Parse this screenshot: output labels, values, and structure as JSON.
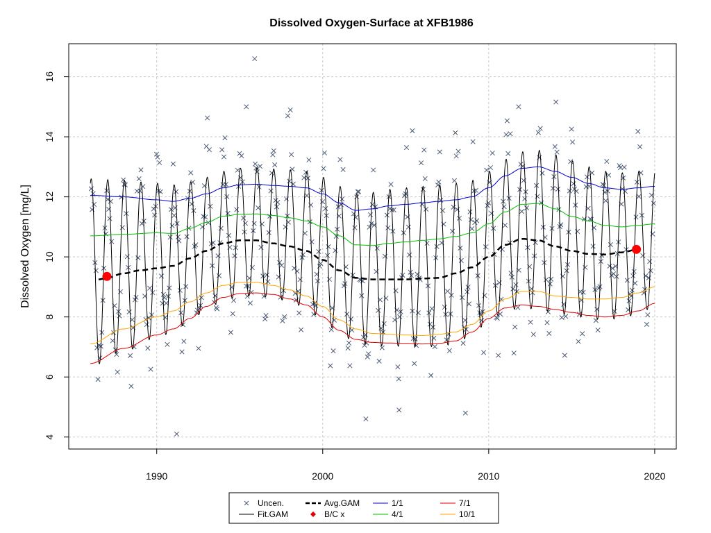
{
  "chart_data": {
    "type": "line",
    "title": "Dissolved Oxygen-Surface at XFB1986",
    "xlabel": "",
    "ylabel": "Dissolved Oxygen [mg/L]",
    "xlim": [
      1984.7,
      2021.3
    ],
    "ylim": [
      3.6,
      17.1
    ],
    "x_ticks": [
      1990,
      2000,
      2010,
      2020
    ],
    "y_ticks": [
      4,
      6,
      8,
      10,
      12,
      14,
      16
    ],
    "grid": true,
    "legend_position": "bottom-center",
    "legend": [
      {
        "label": "Uncen.",
        "symbol": "cross",
        "color": "#4b5b75"
      },
      {
        "label": "Avg.GAM",
        "symbol": "dashed-line",
        "color": "#000000"
      },
      {
        "label": "1/1",
        "symbol": "line",
        "color": "#0000cd"
      },
      {
        "label": "7/1",
        "symbol": "line",
        "color": "#e00000"
      },
      {
        "label": "Fit.GAM",
        "symbol": "line",
        "color": "#000000"
      },
      {
        "label": "B/C x",
        "symbol": "diamond",
        "color": "#e00000"
      },
      {
        "label": "4/1",
        "symbol": "line",
        "color": "#00c000"
      },
      {
        "label": "10/1",
        "symbol": "line",
        "color": "#ffa500"
      }
    ],
    "series": [
      {
        "name": "1/1",
        "color": "#0000cd",
        "x": [
          1986.0,
          1988.0,
          1990.0,
          1991.0,
          1992.0,
          1993.0,
          1994.0,
          1995.0,
          1996.0,
          1997.0,
          1998.0,
          1999.0,
          2000.0,
          2001.0,
          2002.0,
          2003.0,
          2004.0,
          2005.0,
          2006.0,
          2007.0,
          2008.0,
          2009.0,
          2010.0,
          2011.0,
          2012.0,
          2013.0,
          2014.0,
          2015.0,
          2016.0,
          2017.0,
          2018.0,
          2019.0,
          2020.0
        ],
        "y": [
          12.05,
          12.0,
          11.9,
          11.85,
          11.95,
          12.1,
          12.3,
          12.4,
          12.42,
          12.38,
          12.35,
          12.3,
          12.1,
          11.8,
          11.55,
          11.6,
          11.7,
          11.75,
          11.8,
          11.85,
          11.9,
          12.0,
          12.3,
          12.7,
          12.95,
          13.0,
          12.85,
          12.65,
          12.45,
          12.3,
          12.25,
          12.3,
          12.35
        ]
      },
      {
        "name": "4/1",
        "color": "#00c000",
        "x": [
          1986.0,
          1988.0,
          1990.0,
          1991.0,
          1992.0,
          1993.0,
          1994.0,
          1995.0,
          1996.0,
          1997.0,
          1998.0,
          1999.0,
          2000.0,
          2001.0,
          2002.0,
          2003.0,
          2004.0,
          2005.0,
          2006.0,
          2007.0,
          2008.0,
          2009.0,
          2010.0,
          2011.0,
          2012.0,
          2013.0,
          2014.0,
          2015.0,
          2016.0,
          2017.0,
          2018.0,
          2019.0,
          2020.0
        ],
        "y": [
          10.7,
          10.75,
          10.8,
          10.78,
          10.95,
          11.15,
          11.35,
          11.42,
          11.43,
          11.38,
          11.3,
          11.2,
          11.0,
          10.7,
          10.4,
          10.38,
          10.45,
          10.5,
          10.55,
          10.6,
          10.68,
          10.8,
          11.1,
          11.5,
          11.75,
          11.78,
          11.6,
          11.35,
          11.2,
          11.05,
          11.0,
          11.05,
          11.1
        ]
      },
      {
        "name": "Avg.GAM",
        "color": "#000000",
        "dashed": true,
        "x": [
          1986.5,
          1987.0,
          1988.0,
          1989.0,
          1990.0,
          1991.0,
          1992.0,
          1993.0,
          1994.0,
          1995.0,
          1996.0,
          1997.0,
          1998.0,
          1999.0,
          2000.0,
          2001.0,
          2002.0,
          2003.0,
          2004.0,
          2005.0,
          2006.0,
          2007.0,
          2008.0,
          2009.0,
          2010.0,
          2011.0,
          2012.0,
          2013.0,
          2014.0,
          2015.0,
          2016.0,
          2017.0,
          2018.0,
          2019.0
        ],
        "y": [
          9.25,
          9.3,
          9.45,
          9.55,
          9.62,
          9.7,
          9.95,
          10.2,
          10.45,
          10.55,
          10.55,
          10.45,
          10.35,
          10.2,
          9.9,
          9.55,
          9.3,
          9.25,
          9.25,
          9.25,
          9.28,
          9.3,
          9.45,
          9.65,
          10.0,
          10.4,
          10.6,
          10.55,
          10.35,
          10.2,
          10.1,
          10.08,
          10.15,
          10.25
        ]
      },
      {
        "name": "10/1",
        "color": "#ffa500",
        "x": [
          1986.0,
          1988.0,
          1990.0,
          1991.0,
          1992.0,
          1993.0,
          1994.0,
          1995.0,
          1996.0,
          1997.0,
          1998.0,
          1999.0,
          2000.0,
          2001.0,
          2002.0,
          2003.0,
          2004.0,
          2005.0,
          2006.0,
          2007.0,
          2008.0,
          2009.0,
          2010.0,
          2011.0,
          2012.0,
          2013.0,
          2014.0,
          2015.0,
          2016.0,
          2017.0,
          2018.0,
          2019.0,
          2020.0
        ],
        "y": [
          7.1,
          7.6,
          8.0,
          8.2,
          8.5,
          8.8,
          9.05,
          9.15,
          9.15,
          9.05,
          8.9,
          8.7,
          8.35,
          7.9,
          7.6,
          7.45,
          7.42,
          7.4,
          7.38,
          7.42,
          7.5,
          7.75,
          8.2,
          8.6,
          8.85,
          8.85,
          8.7,
          8.65,
          8.6,
          8.6,
          8.65,
          8.8,
          9.0
        ]
      },
      {
        "name": "7/1",
        "color": "#e00000",
        "x": [
          1986.0,
          1988.0,
          1990.0,
          1991.0,
          1992.0,
          1993.0,
          1994.0,
          1995.0,
          1996.0,
          1997.0,
          1998.0,
          1999.0,
          2000.0,
          2001.0,
          2002.0,
          2003.0,
          2004.0,
          2005.0,
          2006.0,
          2007.0,
          2008.0,
          2009.0,
          2010.0,
          2011.0,
          2012.0,
          2013.0,
          2014.0,
          2015.0,
          2016.0,
          2017.0,
          2018.0,
          2019.0,
          2020.0
        ],
        "y": [
          6.45,
          6.95,
          7.4,
          7.6,
          7.95,
          8.35,
          8.65,
          8.78,
          8.8,
          8.75,
          8.6,
          8.4,
          8.0,
          7.55,
          7.25,
          7.15,
          7.13,
          7.12,
          7.1,
          7.12,
          7.2,
          7.5,
          7.95,
          8.3,
          8.4,
          8.35,
          8.25,
          8.15,
          8.05,
          8.0,
          8.05,
          8.2,
          8.45
        ]
      },
      {
        "name": "Fit.GAM",
        "color": "#000000",
        "seasonal": true,
        "x_range": [
          1986.0,
          2020.0
        ],
        "amplitude_note": "seasonal fit oscillating between the 7/1 curve (late summer minimum) and ~0.5 mg/L above the 1/1 curve (winter maximum)"
      }
    ],
    "bc_points": [
      {
        "x": 1987.0,
        "y": 9.35
      },
      {
        "x": 2018.9,
        "y": 10.25
      }
    ],
    "observations_note": "Approximately 560 uncensored monthly observations (1986–2020), scattered about the seasonal fit; range about 4.1 to 16.6 mg/L.",
    "observations_extremes": [
      {
        "x": 1991.2,
        "y": 4.1
      },
      {
        "x": 1995.9,
        "y": 16.6
      },
      {
        "x": 1995.4,
        "y": 15.0
      },
      {
        "x": 2011.8,
        "y": 15.0
      },
      {
        "x": 2002.6,
        "y": 4.6
      },
      {
        "x": 2008.6,
        "y": 4.8
      },
      {
        "x": 2004.6,
        "y": 4.9
      },
      {
        "x": 2005.4,
        "y": 14.2
      },
      {
        "x": 1997.9,
        "y": 14.7
      },
      {
        "x": 2011.3,
        "y": 14.1
      }
    ]
  }
}
